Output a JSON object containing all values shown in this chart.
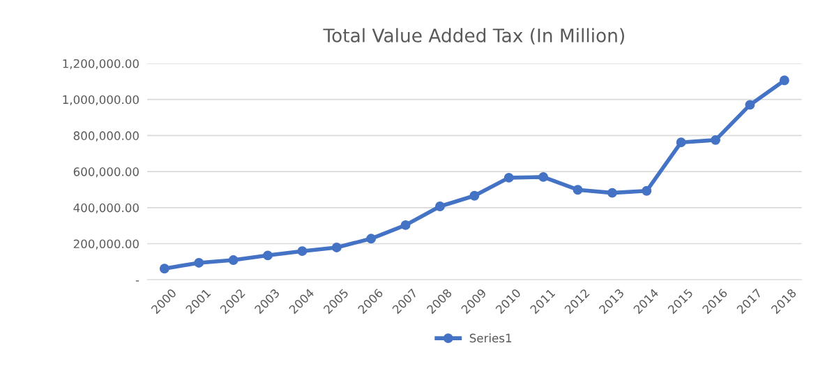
{
  "chart_data": {
    "type": "line",
    "title": "Total Value Added Tax (In Million)",
    "categories": [
      "2000",
      "2001",
      "2002",
      "2003",
      "2004",
      "2005",
      "2006",
      "2007",
      "2008",
      "2009",
      "2010",
      "2011",
      "2012",
      "2013",
      "2014",
      "2015",
      "2016",
      "2017",
      "2018"
    ],
    "series": [
      {
        "name": "Series1",
        "color": "#4472c4",
        "values": [
          62000,
          94000,
          109000,
          135000,
          159000,
          179000,
          228000,
          303000,
          407000,
          466000,
          566000,
          570000,
          499000,
          482000,
          493000,
          762000,
          775000,
          970000,
          1106000
        ]
      }
    ],
    "ylim": [
      0,
      1200000
    ],
    "yticks": [
      {
        "value": 0,
        "label": "-"
      },
      {
        "value": 200000,
        "label": "200,000.00"
      },
      {
        "value": 400000,
        "label": "400,000.00"
      },
      {
        "value": 600000,
        "label": "600,000.00"
      },
      {
        "value": 800000,
        "label": "800,000.00"
      },
      {
        "value": 1000000,
        "label": "1,000,000.00"
      },
      {
        "value": 1200000,
        "label": "1,200,000.00"
      }
    ],
    "grid": "y",
    "legend": "bottom",
    "marker": "circle",
    "line_style": "solid"
  }
}
